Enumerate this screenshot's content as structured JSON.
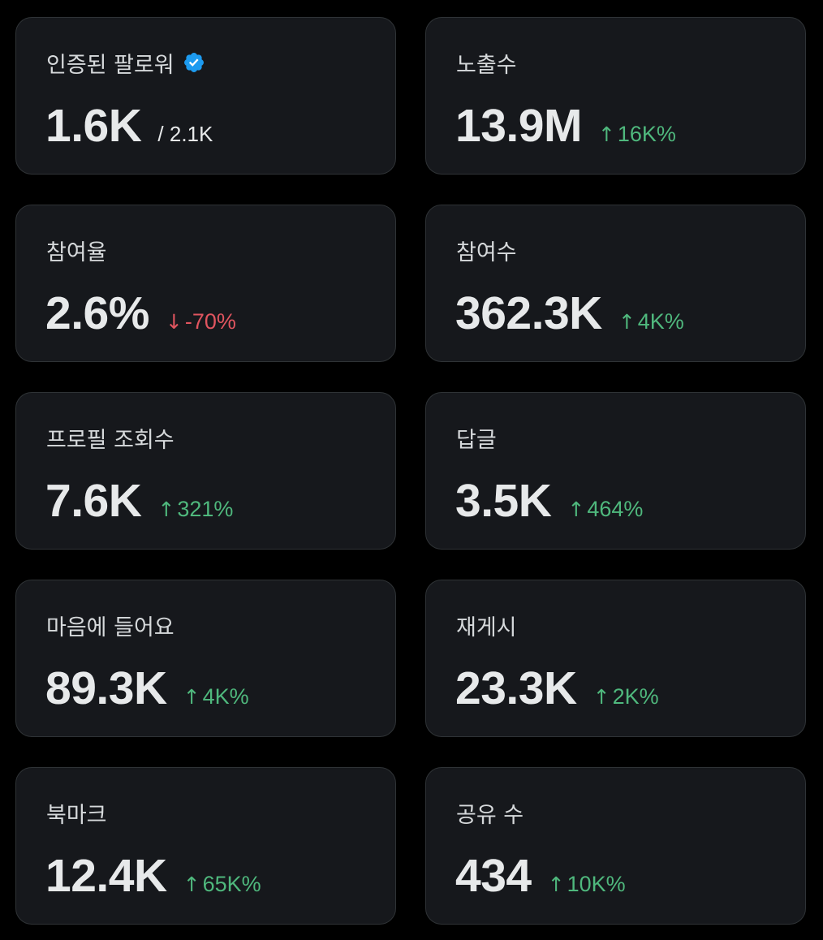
{
  "colors": {
    "background": "#000000",
    "card": "#16181c",
    "border": "#2f3336",
    "positive": "#4fb87d",
    "negative": "#e0555f",
    "verified_badge": "#1d9bf0"
  },
  "metrics": [
    {
      "label": "인증된 팔로워",
      "value": "1.6K",
      "sub": "/ 2.1K",
      "badge_icon": "verified-badge-icon"
    },
    {
      "label": "노출수",
      "value": "13.9M",
      "change": "16K%",
      "direction": "up",
      "arrow": "↑"
    },
    {
      "label": "참여율",
      "value": "2.6%",
      "change": "-70%",
      "direction": "down",
      "arrow": "↓"
    },
    {
      "label": "참여수",
      "value": "362.3K",
      "change": "4K%",
      "direction": "up",
      "arrow": "↑"
    },
    {
      "label": "프로필 조회수",
      "value": "7.6K",
      "change": "321%",
      "direction": "up",
      "arrow": "↑"
    },
    {
      "label": "답글",
      "value": "3.5K",
      "change": "464%",
      "direction": "up",
      "arrow": "↑"
    },
    {
      "label": "마음에 들어요",
      "value": "89.3K",
      "change": "4K%",
      "direction": "up",
      "arrow": "↑"
    },
    {
      "label": "재게시",
      "value": "23.3K",
      "change": "2K%",
      "direction": "up",
      "arrow": "↑"
    },
    {
      "label": "북마크",
      "value": "12.4K",
      "change": "65K%",
      "direction": "up",
      "arrow": "↑"
    },
    {
      "label": "공유 수",
      "value": "434",
      "change": "10K%",
      "direction": "up",
      "arrow": "↑"
    }
  ]
}
